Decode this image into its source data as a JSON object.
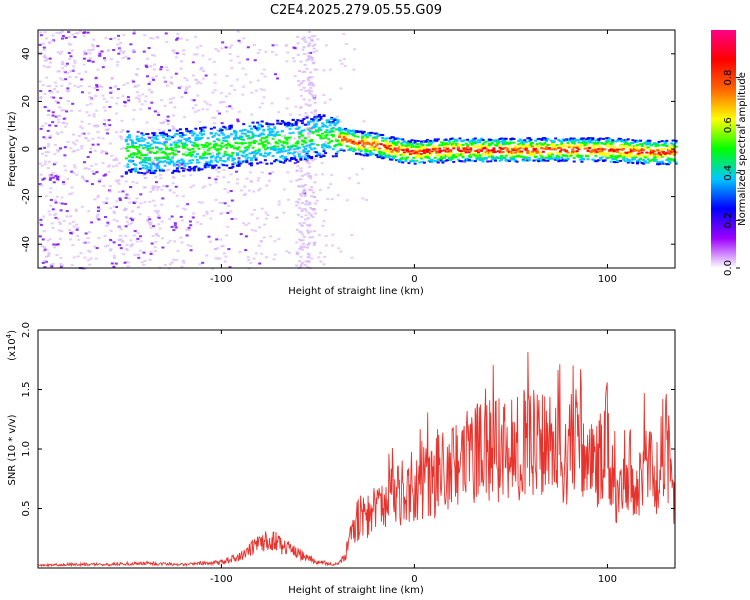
{
  "title": "C2E4.2025.279.05.55.G09",
  "chart_data": [
    {
      "type": "heatmap",
      "name": "spectrogram",
      "xlabel": "Height of straight line (km)",
      "ylabel": "Frequency (Hz)",
      "xlim": [
        -195,
        135
      ],
      "ylim": [
        -50,
        50
      ],
      "xticks": [
        -100,
        0,
        100
      ],
      "yticks": [
        -40,
        -20,
        0,
        20,
        40
      ],
      "colorbar": {
        "label": "Normalized spectral amplitude",
        "range": [
          0,
          1
        ],
        "ticks": [
          0.0,
          0.2,
          0.4,
          0.6,
          0.8
        ],
        "tick_labels": [
          "0.0",
          "0.2",
          "0.4",
          "0.6",
          "0.8"
        ],
        "colors": [
          "#ffffff",
          "#9c00ff",
          "#0000ff",
          "#00c8ff",
          "#00ff00",
          "#ffff00",
          "#ff6600",
          "#ff0000",
          "#ff0088"
        ]
      },
      "ridge": {
        "description_points": [
          [
            -140,
            -2
          ],
          [
            -120,
            0
          ],
          [
            -100,
            1
          ],
          [
            -80,
            3
          ],
          [
            -60,
            4
          ],
          [
            -50,
            6
          ],
          [
            -40,
            5
          ],
          [
            -30,
            3
          ],
          [
            -20,
            2
          ],
          [
            -10,
            0
          ],
          [
            0,
            -1
          ],
          [
            20,
            0
          ],
          [
            40,
            0
          ],
          [
            60,
            0
          ],
          [
            80,
            0
          ],
          [
            100,
            0
          ],
          [
            120,
            -1
          ],
          [
            135,
            -1
          ]
        ],
        "peak_amplitude_range_km": [
          -20,
          135
        ]
      }
    },
    {
      "type": "line",
      "name": "snr",
      "xlabel": "Height of straight line (km)",
      "ylabel": "SNR (10 * v/v)",
      "y_multiplier_label": "(x10",
      "y_multiplier_exp": "4",
      "y_multiplier_close": ")",
      "xlim": [
        -195,
        135
      ],
      "ylim": [
        0,
        2.0
      ],
      "xticks": [
        -100,
        0,
        100
      ],
      "yticks": [
        0.5,
        1.0,
        1.5,
        2.0
      ],
      "ytick_labels": [
        "0.5",
        "1.0",
        "1.5",
        "2.0"
      ],
      "series": [
        {
          "name": "SNR",
          "color": "#e8322c",
          "x": [
            -195,
            -180,
            -160,
            -140,
            -120,
            -100,
            -90,
            -80,
            -75,
            -70,
            -60,
            -50,
            -40,
            -36,
            -30,
            -20,
            -10,
            0,
            10,
            20,
            30,
            40,
            50,
            60,
            70,
            80,
            85,
            90,
            95,
            100,
            105,
            110,
            115,
            120,
            125,
            130,
            135
          ],
          "values": [
            0.02,
            0.03,
            0.03,
            0.04,
            0.03,
            0.05,
            0.1,
            0.22,
            0.25,
            0.2,
            0.12,
            0.05,
            0.03,
            0.1,
            0.4,
            0.5,
            0.6,
            0.7,
            0.75,
            0.85,
            0.95,
            1.0,
            1.0,
            1.05,
            1.0,
            0.95,
            1.3,
            0.8,
            0.85,
            1.1,
            0.5,
            0.9,
            0.6,
            0.9,
            0.7,
            1.1,
            0.5
          ]
        }
      ]
    }
  ]
}
